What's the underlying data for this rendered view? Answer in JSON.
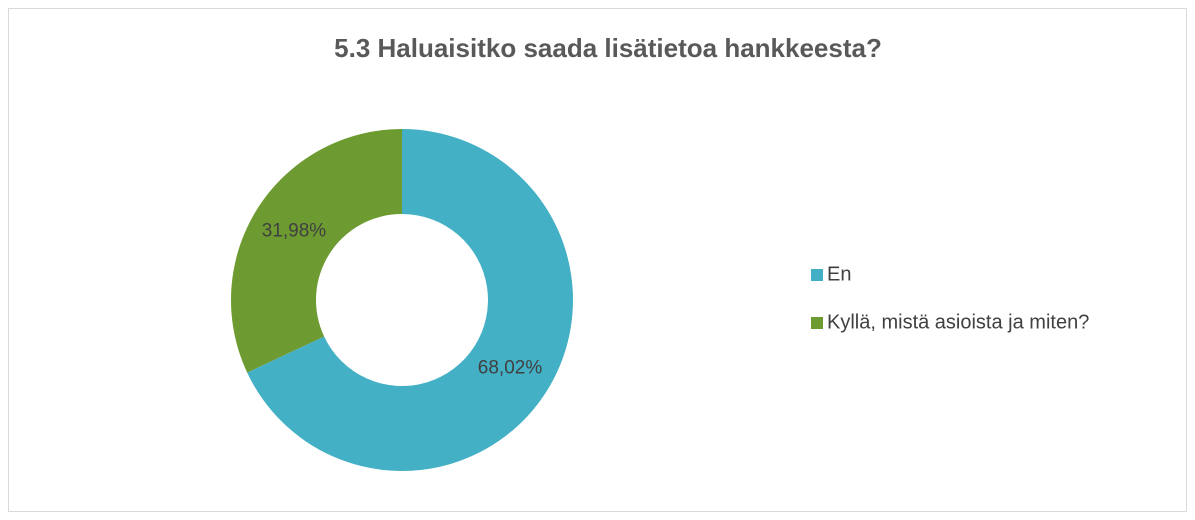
{
  "chart_data": {
    "type": "donut",
    "title": "5.3 Haluaisitko saada lisätietoa hankkeesta?",
    "categories": [
      "En",
      "Kyllä, mistä asioista ja miten?"
    ],
    "values": [
      68.02,
      31.98
    ],
    "value_labels": [
      "68,02%",
      "31,98%"
    ],
    "colors": [
      "#43b0c5",
      "#6e9b31"
    ],
    "legend": "right"
  }
}
